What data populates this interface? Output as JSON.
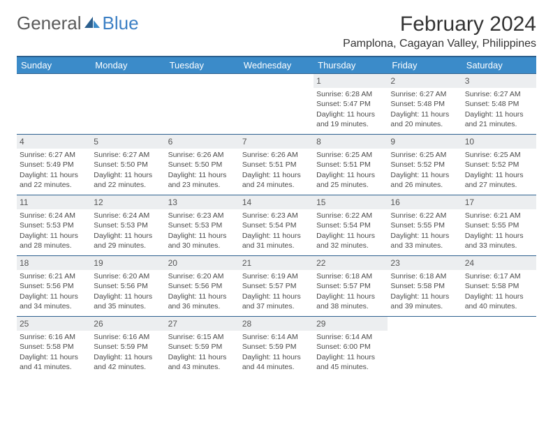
{
  "logo": {
    "text1": "General",
    "text2": "Blue"
  },
  "title": "February 2024",
  "location": "Pamplona, Cagayan Valley, Philippines",
  "colors": {
    "header_bar": "#3b8bc9",
    "border": "#2b5f8e",
    "daynum_bg": "#eceef0",
    "logo_gray": "#5a5a5a",
    "logo_blue": "#3b7fc4"
  },
  "weekdays": [
    "Sunday",
    "Monday",
    "Tuesday",
    "Wednesday",
    "Thursday",
    "Friday",
    "Saturday"
  ],
  "weeks": [
    [
      null,
      null,
      null,
      null,
      {
        "n": "1",
        "sunrise": "6:28 AM",
        "sunset": "5:47 PM",
        "daylight": "11 hours and 19 minutes."
      },
      {
        "n": "2",
        "sunrise": "6:27 AM",
        "sunset": "5:48 PM",
        "daylight": "11 hours and 20 minutes."
      },
      {
        "n": "3",
        "sunrise": "6:27 AM",
        "sunset": "5:48 PM",
        "daylight": "11 hours and 21 minutes."
      }
    ],
    [
      {
        "n": "4",
        "sunrise": "6:27 AM",
        "sunset": "5:49 PM",
        "daylight": "11 hours and 22 minutes."
      },
      {
        "n": "5",
        "sunrise": "6:27 AM",
        "sunset": "5:50 PM",
        "daylight": "11 hours and 22 minutes."
      },
      {
        "n": "6",
        "sunrise": "6:26 AM",
        "sunset": "5:50 PM",
        "daylight": "11 hours and 23 minutes."
      },
      {
        "n": "7",
        "sunrise": "6:26 AM",
        "sunset": "5:51 PM",
        "daylight": "11 hours and 24 minutes."
      },
      {
        "n": "8",
        "sunrise": "6:25 AM",
        "sunset": "5:51 PM",
        "daylight": "11 hours and 25 minutes."
      },
      {
        "n": "9",
        "sunrise": "6:25 AM",
        "sunset": "5:52 PM",
        "daylight": "11 hours and 26 minutes."
      },
      {
        "n": "10",
        "sunrise": "6:25 AM",
        "sunset": "5:52 PM",
        "daylight": "11 hours and 27 minutes."
      }
    ],
    [
      {
        "n": "11",
        "sunrise": "6:24 AM",
        "sunset": "5:53 PM",
        "daylight": "11 hours and 28 minutes."
      },
      {
        "n": "12",
        "sunrise": "6:24 AM",
        "sunset": "5:53 PM",
        "daylight": "11 hours and 29 minutes."
      },
      {
        "n": "13",
        "sunrise": "6:23 AM",
        "sunset": "5:53 PM",
        "daylight": "11 hours and 30 minutes."
      },
      {
        "n": "14",
        "sunrise": "6:23 AM",
        "sunset": "5:54 PM",
        "daylight": "11 hours and 31 minutes."
      },
      {
        "n": "15",
        "sunrise": "6:22 AM",
        "sunset": "5:54 PM",
        "daylight": "11 hours and 32 minutes."
      },
      {
        "n": "16",
        "sunrise": "6:22 AM",
        "sunset": "5:55 PM",
        "daylight": "11 hours and 33 minutes."
      },
      {
        "n": "17",
        "sunrise": "6:21 AM",
        "sunset": "5:55 PM",
        "daylight": "11 hours and 33 minutes."
      }
    ],
    [
      {
        "n": "18",
        "sunrise": "6:21 AM",
        "sunset": "5:56 PM",
        "daylight": "11 hours and 34 minutes."
      },
      {
        "n": "19",
        "sunrise": "6:20 AM",
        "sunset": "5:56 PM",
        "daylight": "11 hours and 35 minutes."
      },
      {
        "n": "20",
        "sunrise": "6:20 AM",
        "sunset": "5:56 PM",
        "daylight": "11 hours and 36 minutes."
      },
      {
        "n": "21",
        "sunrise": "6:19 AM",
        "sunset": "5:57 PM",
        "daylight": "11 hours and 37 minutes."
      },
      {
        "n": "22",
        "sunrise": "6:18 AM",
        "sunset": "5:57 PM",
        "daylight": "11 hours and 38 minutes."
      },
      {
        "n": "23",
        "sunrise": "6:18 AM",
        "sunset": "5:58 PM",
        "daylight": "11 hours and 39 minutes."
      },
      {
        "n": "24",
        "sunrise": "6:17 AM",
        "sunset": "5:58 PM",
        "daylight": "11 hours and 40 minutes."
      }
    ],
    [
      {
        "n": "25",
        "sunrise": "6:16 AM",
        "sunset": "5:58 PM",
        "daylight": "11 hours and 41 minutes."
      },
      {
        "n": "26",
        "sunrise": "6:16 AM",
        "sunset": "5:59 PM",
        "daylight": "11 hours and 42 minutes."
      },
      {
        "n": "27",
        "sunrise": "6:15 AM",
        "sunset": "5:59 PM",
        "daylight": "11 hours and 43 minutes."
      },
      {
        "n": "28",
        "sunrise": "6:14 AM",
        "sunset": "5:59 PM",
        "daylight": "11 hours and 44 minutes."
      },
      {
        "n": "29",
        "sunrise": "6:14 AM",
        "sunset": "6:00 PM",
        "daylight": "11 hours and 45 minutes."
      },
      null,
      null
    ]
  ]
}
